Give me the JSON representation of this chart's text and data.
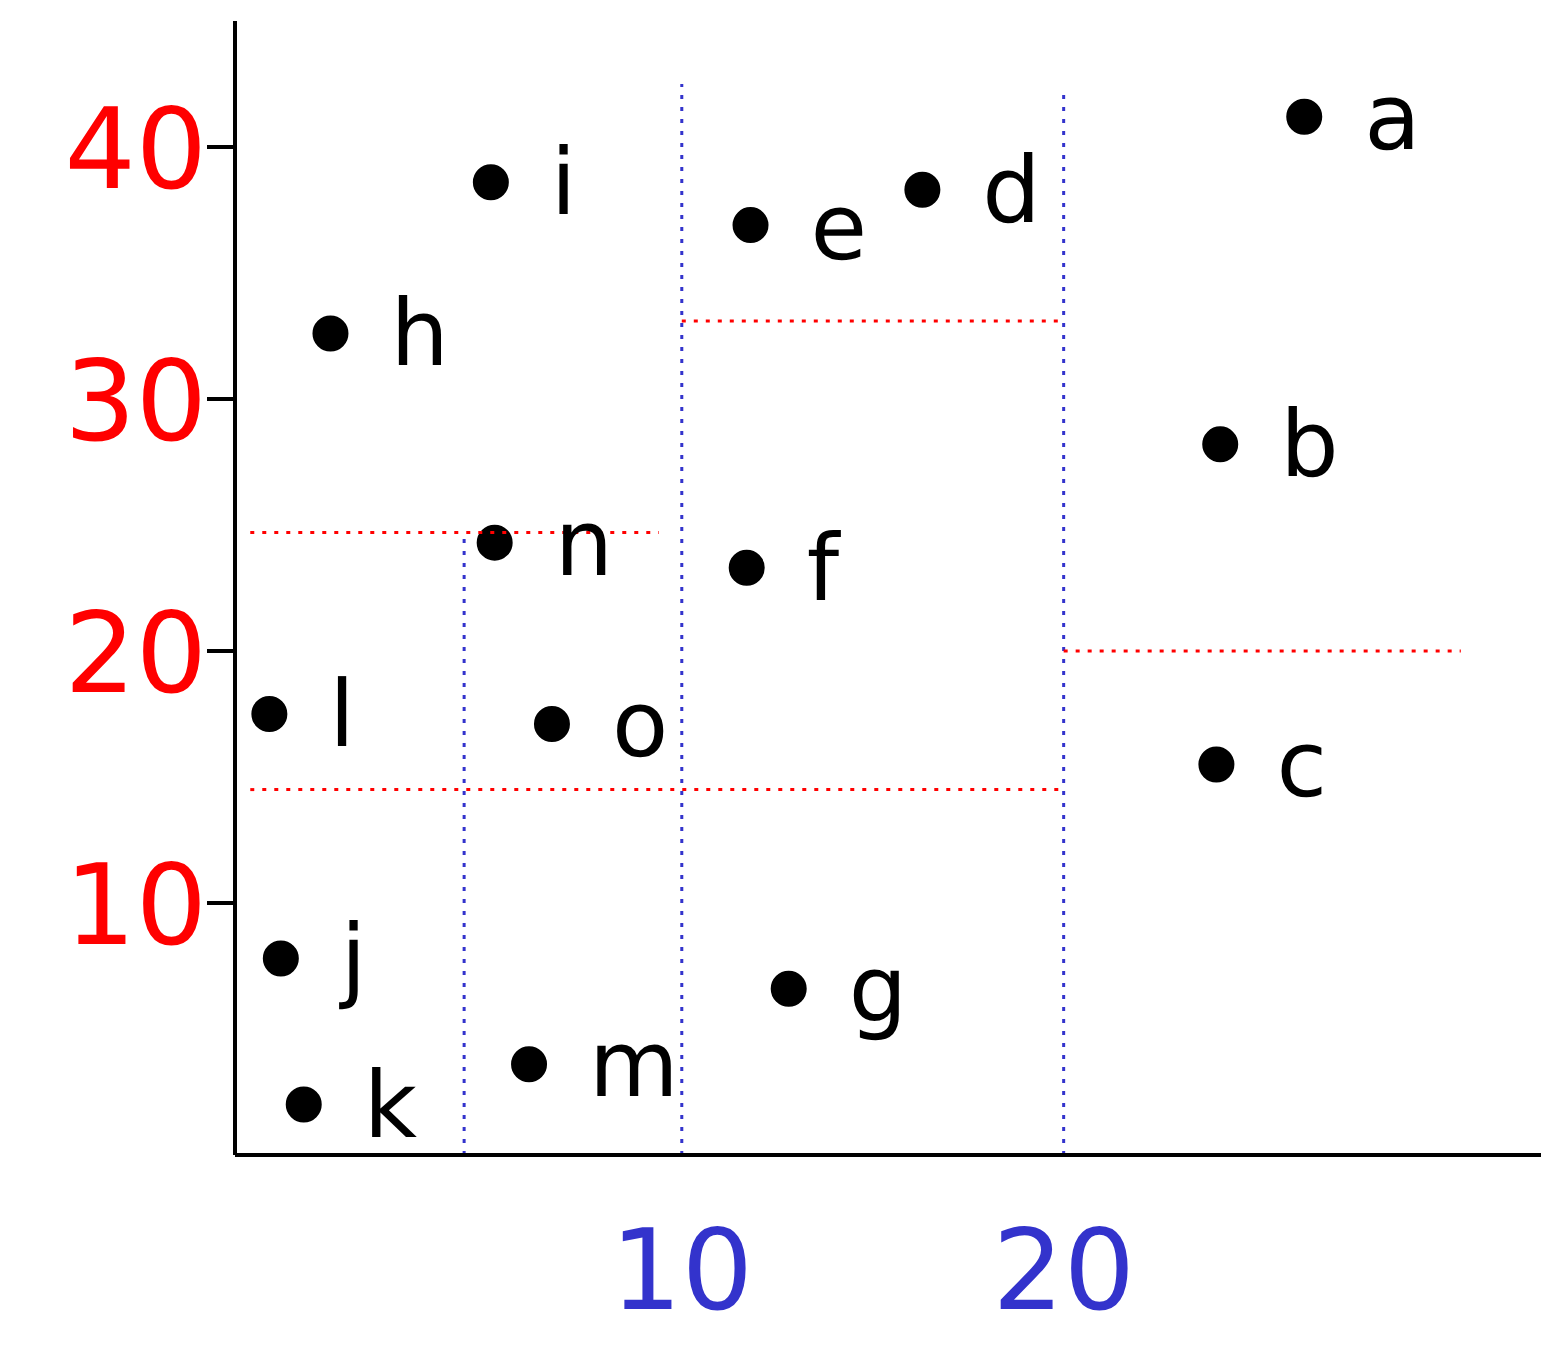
{
  "chart_data": {
    "type": "scatter",
    "xlim": [
      -1.7,
      32.5
    ],
    "ylim": [
      0,
      45
    ],
    "xticks": [
      10,
      20
    ],
    "yticks": [
      10,
      20,
      30,
      40
    ],
    "marker": "circle",
    "series": [
      {
        "color": "#000000",
        "x": [
          26.3,
          24.1,
          24.0,
          16.3,
          11.8,
          11.7,
          12.8,
          0.8,
          5.0,
          -0.5,
          0.1,
          -0.8,
          6.0,
          5.1,
          6.6
        ],
        "values": [
          41.2,
          28.2,
          15.5,
          38.3,
          36.9,
          23.3,
          6.6,
          32.6,
          38.6,
          7.8,
          2.0,
          17.5,
          3.6,
          24.3,
          17.1
        ]
      },
      {
        "type": "line",
        "color": "#3333cc",
        "line_style": "dotted",
        "marker": "none",
        "x": [
          10,
          10
        ],
        "values": [
          0,
          42.5
        ]
      },
      {
        "type": "line",
        "color": "#3333cc",
        "line_style": "dotted",
        "marker": "none",
        "x": [
          20,
          20
        ],
        "values": [
          0,
          42.1
        ]
      },
      {
        "type": "line",
        "color": "#3333cc",
        "line_style": "dotted",
        "marker": "none",
        "x": [
          4.3,
          4.3
        ],
        "values": [
          0,
          24.7
        ]
      },
      {
        "type": "line",
        "color": "#ff0000",
        "line_style": "dotted",
        "marker": "none",
        "x": [
          20,
          30.4
        ],
        "values": [
          20,
          20
        ]
      },
      {
        "type": "line",
        "color": "#ff0000",
        "line_style": "dotted",
        "marker": "none",
        "x": [
          10,
          20
        ],
        "values": [
          33.1,
          33.1
        ]
      },
      {
        "type": "line",
        "color": "#ff0000",
        "line_style": "dotted",
        "marker": "none",
        "x": [
          -1.3,
          20
        ],
        "values": [
          14.5,
          14.5
        ]
      },
      {
        "type": "line",
        "color": "#ff0000",
        "line_style": "dotted",
        "marker": "none",
        "x": [
          -1.3,
          9.4
        ],
        "values": [
          24.7,
          24.7
        ]
      }
    ],
    "annotations": [
      {
        "text": "a",
        "x": 26.3,
        "y": 41.2
      },
      {
        "text": "b",
        "x": 24.1,
        "y": 28.2
      },
      {
        "text": "c",
        "x": 24.0,
        "y": 15.5
      },
      {
        "text": "d",
        "x": 16.3,
        "y": 38.3
      },
      {
        "text": "e",
        "x": 11.8,
        "y": 36.9
      },
      {
        "text": "f",
        "x": 11.7,
        "y": 23.3
      },
      {
        "text": "g",
        "x": 12.8,
        "y": 6.6
      },
      {
        "text": "h",
        "x": 0.8,
        "y": 32.6
      },
      {
        "text": "i",
        "x": 5.0,
        "y": 38.6
      },
      {
        "text": "j",
        "x": -0.5,
        "y": 7.8
      },
      {
        "text": "k",
        "x": 0.1,
        "y": 2.0
      },
      {
        "text": "l",
        "x": -0.8,
        "y": 17.5
      },
      {
        "text": "m",
        "x": 6.0,
        "y": 3.6
      },
      {
        "text": "n",
        "x": 5.1,
        "y": 24.3
      },
      {
        "text": "o",
        "x": 6.6,
        "y": 17.1
      }
    ]
  }
}
